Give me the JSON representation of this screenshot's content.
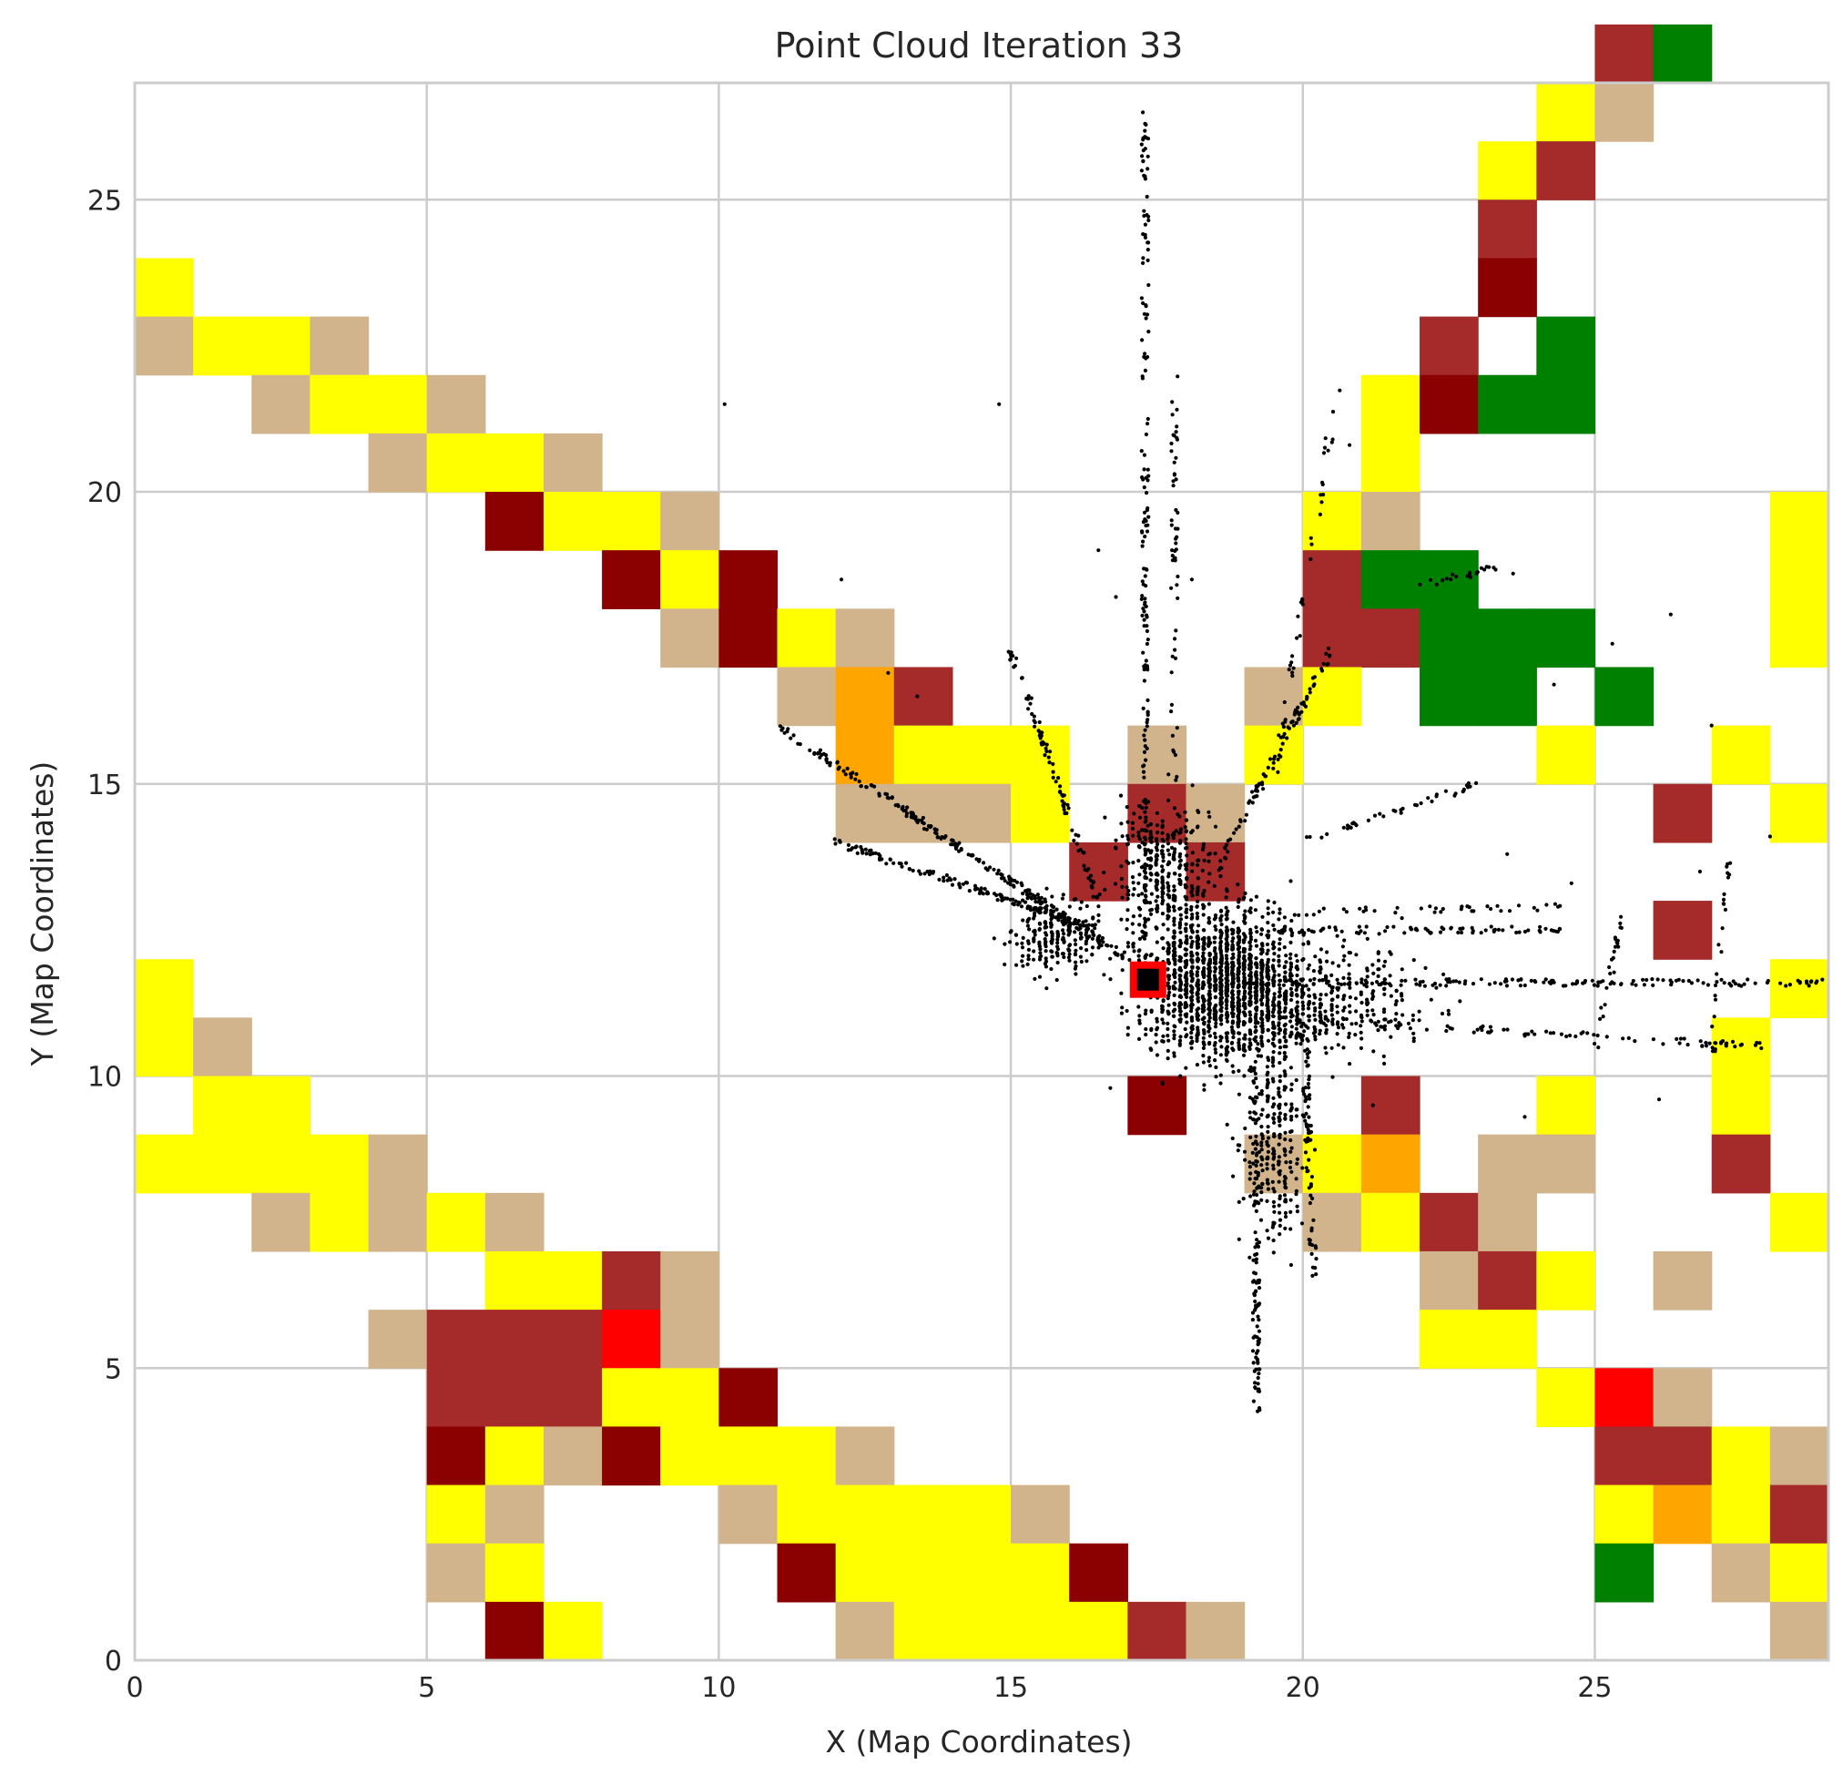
{
  "chart_data": {
    "type": "heatmap",
    "title": "Point Cloud Iteration 33",
    "xlabel": "X (Map Coordinates)",
    "ylabel": "Y (Map Coordinates)",
    "xlim": [
      0,
      29
    ],
    "ylim": [
      0,
      27
    ],
    "x_ticks": [
      0,
      5,
      10,
      15,
      20,
      25
    ],
    "y_ticks": [
      0,
      5,
      10,
      15,
      20,
      25
    ],
    "grid": true,
    "colors": {
      "Y": "#ffff00",
      "T": "#d2b48c",
      "B": "#a52a2a",
      "D": "#8b0000",
      "G": "#008000",
      "O": "#ffa500",
      "R": "#ff0000"
    },
    "grid_rows_top_down": [
      ".........................BG..",
      "........................YT...",
      ".......................YB....",
      ".......................B.....",
      "Y......................D.....",
      "TYYT..................B.G....",
      "..TYYT...............YDGG....",
      "....TYYT.............Y.......",
      "......DYYT..........YT......Y",
      "........DYD.........BGG.....Y",
      ".........TDYT.......BBGGG...Y.",
      "...........TOB.....TY.GG.G....",
      "............OYYY.T.Y....Y..Y..",
      "............TTTY.BT.......B.Y..",
      "................B.B...........Y..",
      "..........................B..",
      "Y...........................Y",
      "YT.........................Y.",
      ".YY..............D...B..Y..Y.",
      "YYYYT..............TYO.TT..B.",
      "..TYTYT.............TYBT....Y",
      "......YYBT............TBY.T..",
      "....TBBBRT............YY.....",
      ".....BBBYYD.............YRT..",
      ".....DYTDYYYT............BBYT",
      ".....YT...TYYYYT.........YOYB",
      ".....TY....DYYYYD........G.TY",
      "......DY....TYYYYBT.........T"
    ],
    "robot_marker": {
      "x": 17.35,
      "y": 11.65
    },
    "point_clusters": [
      {
        "x": 18.6,
        "y": 11.6,
        "sx": 1.0,
        "sy": 0.9,
        "n": 1500
      },
      {
        "x": 17.6,
        "y": 13.5,
        "sx": 0.6,
        "sy": 0.8,
        "n": 350
      },
      {
        "x": 20.2,
        "y": 11.3,
        "sx": 1.3,
        "sy": 0.7,
        "n": 400
      },
      {
        "x": 19.5,
        "y": 9.0,
        "sx": 0.4,
        "sy": 1.3,
        "n": 260
      },
      {
        "x": 15.7,
        "y": 12.4,
        "sx": 0.6,
        "sy": 0.5,
        "n": 220
      }
    ],
    "point_lines": [
      {
        "x1": 17.3,
        "y1": 12.0,
        "x2": 17.3,
        "y2": 26.9,
        "n": 170
      },
      {
        "x1": 17.8,
        "y1": 13.5,
        "x2": 17.8,
        "y2": 22.0,
        "n": 60
      },
      {
        "x1": 17.0,
        "y1": 12.0,
        "x2": 11.0,
        "y2": 16.0,
        "n": 220
      },
      {
        "x1": 16.5,
        "y1": 12.5,
        "x2": 12.0,
        "y2": 14.0,
        "n": 150
      },
      {
        "x1": 16.5,
        "y1": 13.0,
        "x2": 15.0,
        "y2": 17.3,
        "n": 90
      },
      {
        "x1": 19.2,
        "y1": 11.0,
        "x2": 19.2,
        "y2": 4.3,
        "n": 120
      },
      {
        "x1": 20.0,
        "y1": 11.0,
        "x2": 20.2,
        "y2": 6.5,
        "n": 70
      },
      {
        "x1": 19.0,
        "y1": 11.6,
        "x2": 29.0,
        "y2": 11.6,
        "n": 160
      },
      {
        "x1": 19.5,
        "y1": 11.0,
        "x2": 28.0,
        "y2": 10.5,
        "n": 90
      },
      {
        "x1": 19.5,
        "y1": 12.5,
        "x2": 24.5,
        "y2": 12.5,
        "n": 80
      },
      {
        "x1": 19.5,
        "y1": 12.8,
        "x2": 24.5,
        "y2": 12.9,
        "n": 40
      },
      {
        "x1": 18.5,
        "y1": 13.5,
        "x2": 20.5,
        "y2": 17.3,
        "n": 90
      },
      {
        "x1": 19.5,
        "y1": 15.0,
        "x2": 20.6,
        "y2": 21.8,
        "n": 40
      },
      {
        "x1": 20.0,
        "y1": 14.0,
        "x2": 23.0,
        "y2": 15.0,
        "n": 40
      },
      {
        "x1": 22.0,
        "y1": 18.4,
        "x2": 23.3,
        "y2": 18.7,
        "n": 20
      },
      {
        "x1": 27.0,
        "y1": 10.3,
        "x2": 27.3,
        "y2": 13.7,
        "n": 25
      },
      {
        "x1": 25.0,
        "y1": 10.5,
        "x2": 25.5,
        "y2": 12.8,
        "n": 25
      }
    ],
    "point_singles": [
      [
        10.1,
        21.5
      ],
      [
        14.8,
        21.5
      ],
      [
        12.1,
        18.5
      ],
      [
        16.5,
        19.0
      ],
      [
        24.3,
        16.7
      ],
      [
        25.3,
        17.4
      ],
      [
        26.3,
        17.9
      ],
      [
        27.0,
        16.0
      ],
      [
        28.0,
        14.1
      ],
      [
        26.8,
        13.5
      ],
      [
        24.6,
        13.3
      ],
      [
        23.5,
        13.8
      ],
      [
        22.6,
        14.8
      ],
      [
        20.8,
        20.8
      ],
      [
        16.8,
        18.2
      ],
      [
        12.9,
        16.9
      ],
      [
        13.4,
        16.5
      ],
      [
        18.1,
        18.5
      ],
      [
        23.6,
        18.6
      ],
      [
        26.1,
        9.6
      ],
      [
        23.8,
        9.3
      ],
      [
        21.2,
        9.5
      ]
    ]
  }
}
